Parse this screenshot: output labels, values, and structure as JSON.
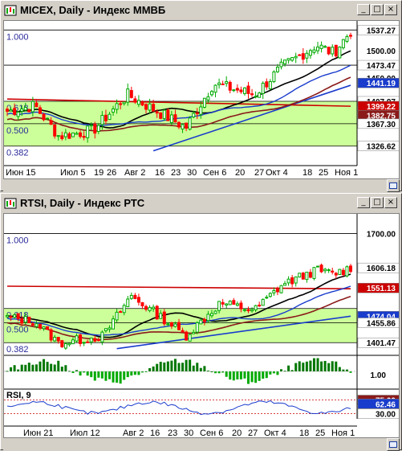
{
  "windows": [
    {
      "title": "MICEX, Daily - Индекс ММВБ",
      "buttons": [
        "_",
        "□",
        "×"
      ],
      "price_labels": [
        {
          "text": "1537.27",
          "bg": "#ffffff",
          "fg": "#000000",
          "v": 1537.27
        },
        {
          "text": "1500.00",
          "bg": "#ffffff",
          "fg": "#000000",
          "v": 1500.0,
          "plain": true
        },
        {
          "text": "1473.47",
          "bg": "#ffffff",
          "fg": "#000000",
          "v": 1473.47
        },
        {
          "text": "1450.00",
          "bg": "#ffffff",
          "fg": "#000000",
          "v": 1450.0,
          "plain": true
        },
        {
          "text": "1441.19",
          "bg": "#1a3ccc",
          "fg": "#ffffff",
          "v": 1441.19
        },
        {
          "text": "1407.97",
          "bg": "#ffffff",
          "fg": "#000000",
          "v": 1407.97
        },
        {
          "text": "1399.22",
          "bg": "#cc0000",
          "fg": "#ffffff",
          "v": 1399.22
        },
        {
          "text": "1382.75",
          "bg": "#8b1a1a",
          "fg": "#ffffff",
          "v": 1382.75
        },
        {
          "text": "1367.30",
          "bg": "#ffffff",
          "fg": "#000000",
          "v": 1367.3
        },
        {
          "text": "1326.62",
          "bg": "#ffffff",
          "fg": "#000000",
          "v": 1326.62
        }
      ],
      "fib_labels": [
        {
          "text": "1.000",
          "v": 1537.27
        },
        {
          "text": "0.618",
          "v": 1407.97
        },
        {
          "text": "0.500",
          "v": 1367.3
        },
        {
          "text": "0.382",
          "v": 1326.62
        }
      ],
      "x_labels": [
        "Июн 15",
        "Июл 5",
        "19",
        "26",
        "Авг 2",
        "16",
        "23",
        "30",
        "Сен 6",
        "20",
        "27",
        "Окт 4",
        "18",
        "25",
        "Ноя 1"
      ]
    },
    {
      "title": "RTSI, Daily - Индекс РТС",
      "buttons": [
        "_",
        "□",
        "×"
      ],
      "price_labels": [
        {
          "text": "1700.00",
          "bg": "#ffffff",
          "fg": "#000000",
          "v": 1700,
          "plain": true
        },
        {
          "text": "1606.18",
          "bg": "#ffffff",
          "fg": "#000000",
          "v": 1606.18
        },
        {
          "text": "1551.13",
          "bg": "#cc0000",
          "fg": "#ffffff",
          "v": 1551.13
        },
        {
          "text": "1474.04",
          "bg": "#1a3ccc",
          "fg": "#ffffff",
          "v": 1474.04
        },
        {
          "text": "1455.86",
          "bg": "#ffffff",
          "fg": "#000000",
          "v": 1455.86
        },
        {
          "text": "1401.47",
          "bg": "#ffffff",
          "fg": "#000000",
          "v": 1401.47
        }
      ],
      "fib_labels": [
        {
          "text": "1.000",
          "v": 1700
        },
        {
          "text": "0.618",
          "v": 1495
        },
        {
          "text": "0.500",
          "v": 1455.86
        },
        {
          "text": "0.382",
          "v": 1401.47
        }
      ],
      "osc_label": "1.00",
      "rsi_title": "RSI, 9",
      "rsi_labels": [
        {
          "text": "75.00",
          "bg": "#8b1a1a",
          "fg": "#ffffff",
          "v": 75
        },
        {
          "text": "62.46",
          "bg": "#1a3ccc",
          "fg": "#ffffff",
          "v": 62.46
        },
        {
          "text": "30.00",
          "bg": "#ffffff",
          "fg": "#000000",
          "v": 30
        }
      ],
      "x_labels": [
        "Июн 21",
        "Июл 12",
        "Авг 2",
        "16",
        "23",
        "30",
        "Сен 6",
        "20",
        "27",
        "Окт 4",
        "18",
        "25",
        "Ноя 1"
      ]
    }
  ],
  "colors": {
    "bull": "#00aa00",
    "bear": "#ff0000",
    "band": "#ccff99",
    "ma_black": "#000000",
    "ma_blue": "#1a3ccc",
    "ma_red": "#cc0000",
    "ma_brown": "#8b1a1a"
  }
}
